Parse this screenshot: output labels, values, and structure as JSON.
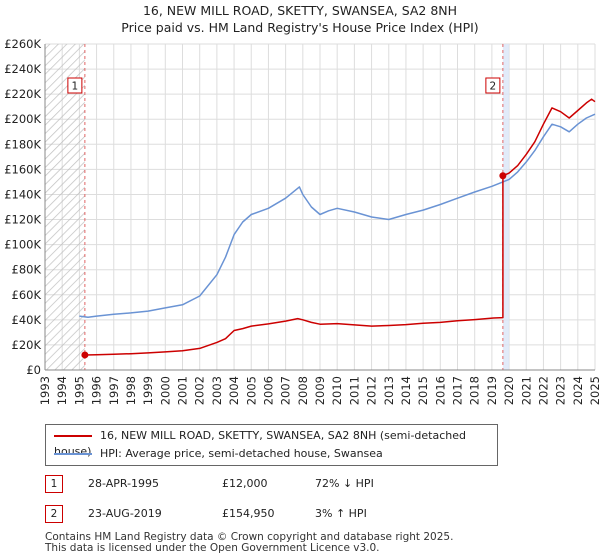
{
  "title_line1": "16, NEW MILL ROAD, SKETTY, SWANSEA, SA2 8NH",
  "title_line2": "Price paid vs. HM Land Registry's House Price Index (HPI)",
  "chart_data": {
    "type": "line",
    "xlim": [
      1993,
      2025
    ],
    "ylim": [
      0,
      260000
    ],
    "y_ticks": [
      0,
      20000,
      40000,
      60000,
      80000,
      100000,
      120000,
      140000,
      160000,
      180000,
      200000,
      220000,
      240000,
      260000
    ],
    "y_tick_labels": [
      "£0",
      "£20K",
      "£40K",
      "£60K",
      "£80K",
      "£100K",
      "£120K",
      "£140K",
      "£160K",
      "£180K",
      "£200K",
      "£220K",
      "£240K",
      "£260K"
    ],
    "x_ticks": [
      1993,
      1994,
      1995,
      1996,
      1997,
      1998,
      1999,
      2000,
      2001,
      2002,
      2003,
      2004,
      2005,
      2006,
      2007,
      2008,
      2009,
      2010,
      2011,
      2012,
      2013,
      2014,
      2015,
      2016,
      2017,
      2018,
      2019,
      2020,
      2021,
      2022,
      2023,
      2024,
      2025
    ],
    "x_tick_labels": [
      "1993",
      "1994",
      "1995",
      "1996",
      "1997",
      "1998",
      "1999",
      "2000",
      "2001",
      "2002",
      "2003",
      "2004",
      "2005",
      "2006",
      "2007",
      "2008",
      "2009",
      "2010",
      "2011",
      "2012",
      "2013",
      "2014",
      "2015",
      "2016",
      "2017",
      "2018",
      "2019",
      "2020",
      "2021",
      "2022",
      "2023",
      "2024",
      "2025"
    ],
    "series": [
      {
        "name": "16, NEW MILL ROAD, SKETTY, SWANSEA, SA2 8NH (semi-detached house)",
        "color": "#cc0000",
        "points": [
          [
            1995.32,
            12000
          ],
          [
            1996,
            12100
          ],
          [
            1997,
            12500
          ],
          [
            1998,
            13000
          ],
          [
            1999,
            13600
          ],
          [
            2000,
            14400
          ],
          [
            2001,
            15400
          ],
          [
            2002,
            17200
          ],
          [
            2003,
            22000
          ],
          [
            2003.5,
            25000
          ],
          [
            2004,
            31500
          ],
          [
            2004.5,
            33000
          ],
          [
            2005,
            35000
          ],
          [
            2006,
            36800
          ],
          [
            2007,
            39000
          ],
          [
            2007.7,
            41000
          ],
          [
            2008,
            40000
          ],
          [
            2008.5,
            38000
          ],
          [
            2009,
            36500
          ],
          [
            2010,
            37000
          ],
          [
            2011,
            36000
          ],
          [
            2012,
            35000
          ],
          [
            2013,
            35500
          ],
          [
            2014,
            36200
          ],
          [
            2015,
            37300
          ],
          [
            2016,
            38000
          ],
          [
            2017,
            39200
          ],
          [
            2018,
            40200
          ],
          [
            2019.1,
            41500
          ],
          [
            2019.64,
            41800
          ],
          [
            2019.64,
            154950
          ],
          [
            2020,
            157000
          ],
          [
            2020.5,
            163000
          ],
          [
            2021,
            172000
          ],
          [
            2021.5,
            182000
          ],
          [
            2022,
            196000
          ],
          [
            2022.5,
            209000
          ],
          [
            2023,
            206000
          ],
          [
            2023.5,
            201000
          ],
          [
            2024,
            207000
          ],
          [
            2024.5,
            213000
          ],
          [
            2024.8,
            216000
          ],
          [
            2025,
            214000
          ]
        ]
      },
      {
        "name": "HPI: Average price, semi-detached house, Swansea",
        "color": "#6a93d4",
        "points": [
          [
            1995,
            43000
          ],
          [
            1995.5,
            42000
          ],
          [
            1996,
            43000
          ],
          [
            1997,
            44500
          ],
          [
            1998,
            45500
          ],
          [
            1999,
            47000
          ],
          [
            2000,
            49500
          ],
          [
            2001,
            52000
          ],
          [
            2002,
            59000
          ],
          [
            2003,
            76000
          ],
          [
            2003.5,
            90000
          ],
          [
            2004,
            108000
          ],
          [
            2004.5,
            118000
          ],
          [
            2005,
            124000
          ],
          [
            2006,
            129000
          ],
          [
            2007,
            137000
          ],
          [
            2007.8,
            146000
          ],
          [
            2008,
            140000
          ],
          [
            2008.5,
            130000
          ],
          [
            2009,
            124000
          ],
          [
            2009.5,
            127000
          ],
          [
            2010,
            129000
          ],
          [
            2011,
            126000
          ],
          [
            2012,
            122000
          ],
          [
            2013,
            120000
          ],
          [
            2014,
            124000
          ],
          [
            2015,
            127500
          ],
          [
            2016,
            132000
          ],
          [
            2017,
            137000
          ],
          [
            2018,
            142000
          ],
          [
            2019,
            146500
          ],
          [
            2019.64,
            150000
          ],
          [
            2020,
            152000
          ],
          [
            2020.5,
            158000
          ],
          [
            2021,
            166000
          ],
          [
            2021.5,
            175000
          ],
          [
            2022,
            186000
          ],
          [
            2022.5,
            196000
          ],
          [
            2023,
            194000
          ],
          [
            2023.5,
            190000
          ],
          [
            2024,
            196000
          ],
          [
            2024.5,
            201000
          ],
          [
            2025,
            204000
          ]
        ]
      }
    ],
    "events": [
      {
        "label": "1",
        "x": 1995.32,
        "y": 12000,
        "date": "28-APR-1995",
        "price": "£12,000",
        "hpi": "72% ↓ HPI"
      },
      {
        "label": "2",
        "x": 2019.64,
        "y": 154950,
        "date": "23-AUG-2019",
        "price": "£154,950",
        "hpi": "3% ↑ HPI"
      }
    ]
  },
  "legend": {
    "property_label": "16, NEW MILL ROAD, SKETTY, SWANSEA, SA2 8NH (semi-detached house)",
    "hpi_label": "HPI: Average price, semi-detached house, Swansea"
  },
  "footer": {
    "line1": "Contains HM Land Registry data © Crown copyright and database right 2025.",
    "line2": "This data is licensed under the Open Government Licence v3.0."
  }
}
